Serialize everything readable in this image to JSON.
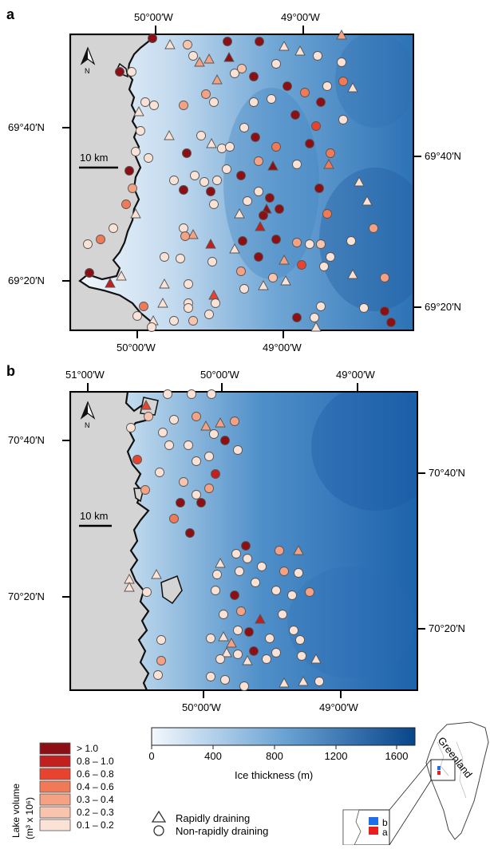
{
  "panel_a": {
    "label": "a",
    "top_lon": [
      "50°00′W",
      "49°00′W"
    ],
    "bottom_lon": [
      "50°00′W",
      "49°00′W"
    ],
    "left_lat": [
      "69°40′N",
      "69°20′N"
    ],
    "right_lat": [
      "69°40′N",
      "69°20′N"
    ],
    "north": "N",
    "scale": "10 km"
  },
  "panel_b": {
    "label": "b",
    "top_lon": [
      "51°00′W",
      "50°00′W",
      "49°00′W"
    ],
    "bottom_lon": [
      "50°00′W",
      "49°00′W"
    ],
    "left_lat": [
      "70°40′N",
      "70°20′N"
    ],
    "right_lat": [
      "70°40′N",
      "70°20′N"
    ],
    "north": "N",
    "scale": "10 km"
  },
  "volume_legend": {
    "title": "Lake volume",
    "units": "(m³ x 10⁶)",
    "classes": [
      {
        "label": "> 1.0",
        "color": "#8b0f14"
      },
      {
        "label": "0.8 – 1.0",
        "color": "#c21f1f"
      },
      {
        "label": "0.6 – 0.8",
        "color": "#e8432e"
      },
      {
        "label": "0.4 – 0.6",
        "color": "#f07a58"
      },
      {
        "label": "0.3 – 0.4",
        "color": "#f4a283"
      },
      {
        "label": "0.2 – 0.3",
        "color": "#f8c4ae"
      },
      {
        "label": "0.1 – 0.2",
        "color": "#fbe2d6"
      }
    ]
  },
  "thickness_bar": {
    "ticks": [
      "0",
      "400",
      "800",
      "1200",
      "1600"
    ],
    "label": "Ice thickness (m)",
    "color_low": "#f3f8fd",
    "color_high": "#08458a"
  },
  "symbol_legend": {
    "rapid": "Rapidly draining",
    "non_rapid": "Non-rapidly draining"
  },
  "inset": {
    "greenland": "Greenland",
    "label_a": "a",
    "label_b": "b",
    "color_a": "#e81f1f",
    "color_b": "#1f6fe8"
  }
}
